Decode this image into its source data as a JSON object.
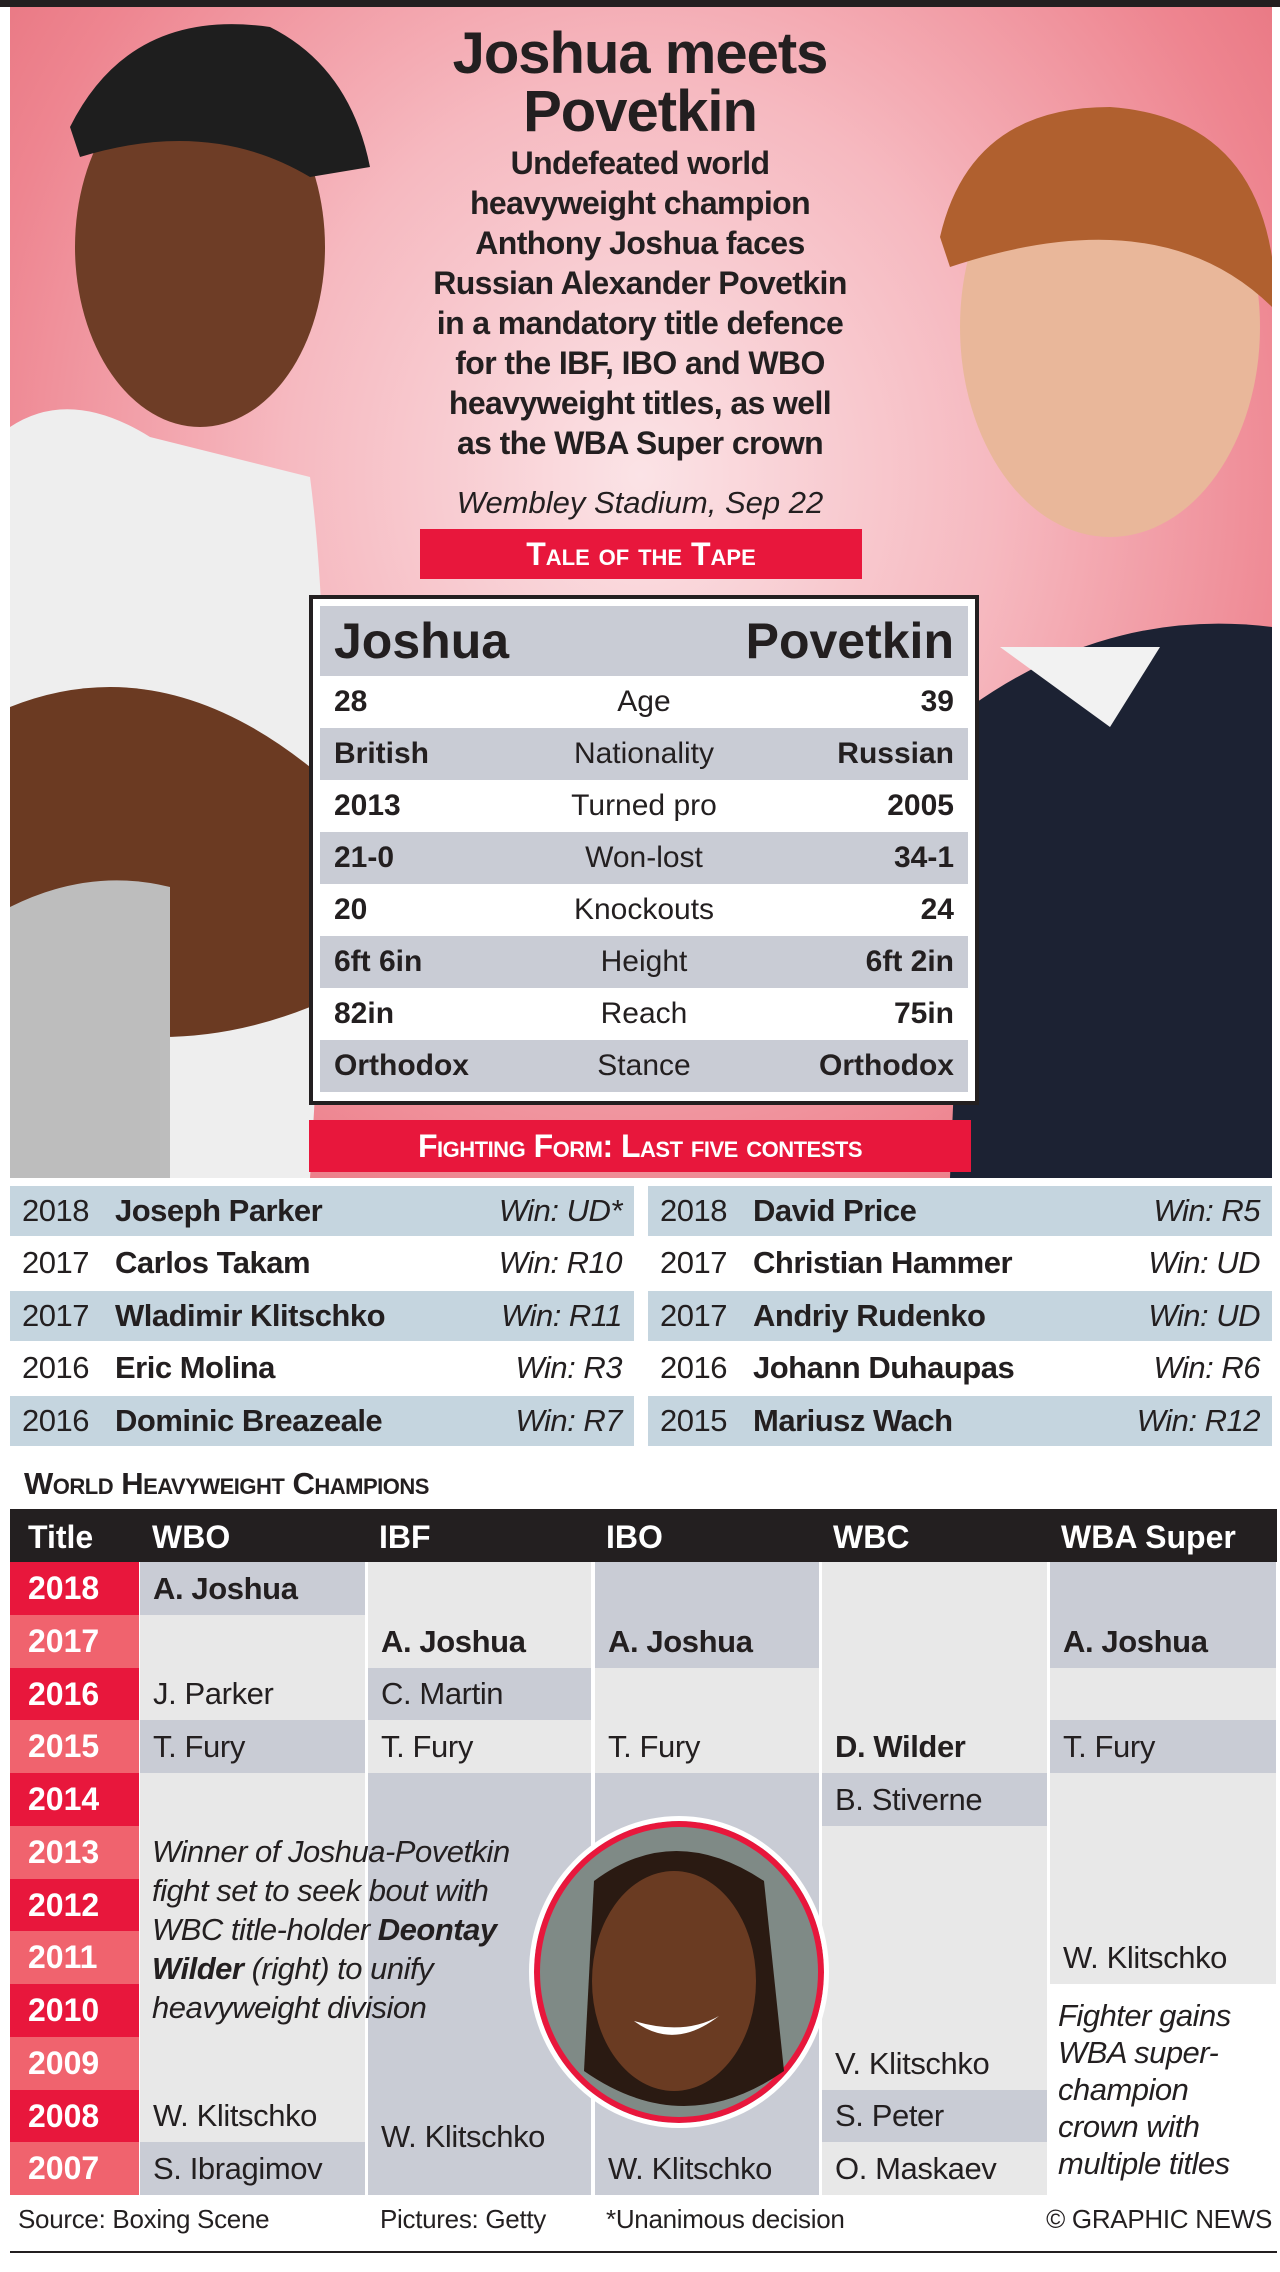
{
  "title": {
    "line1": "Joshua meets",
    "line2": "Povetkin"
  },
  "description": [
    "Undefeated world",
    "heavyweight champion",
    "Anthony Joshua faces",
    "Russian Alexander Povetkin",
    "in a mandatory title defence",
    "for the IBF, IBO and WBO",
    "heavyweight titles, as well",
    "as the WBA Super crown"
  ],
  "venue": "Wembley Stadium, Sep 22",
  "tape": {
    "heading": "Tale of the Tape",
    "left_name": "Joshua",
    "right_name": "Povetkin",
    "rows": [
      {
        "label": "Age",
        "left": "28",
        "right": "39"
      },
      {
        "label": "Nationality",
        "left": "British",
        "right": "Russian"
      },
      {
        "label": "Turned pro",
        "left": "2013",
        "right": "2005"
      },
      {
        "label": "Won-lost",
        "left": "21-0",
        "right": "34-1"
      },
      {
        "label": "Knockouts",
        "left": "20",
        "right": "24"
      },
      {
        "label": "Height",
        "left": "6ft 6in",
        "right": "6ft 2in"
      },
      {
        "label": "Reach",
        "left": "82in",
        "right": "75in"
      },
      {
        "label": "Stance",
        "left": "Orthodox",
        "right": "Orthodox"
      }
    ]
  },
  "form": {
    "heading": "Fighting Form: Last five contests",
    "joshua": [
      {
        "year": "2018",
        "opponent": "Joseph Parker",
        "result": "Win: UD*"
      },
      {
        "year": "2017",
        "opponent": "Carlos Takam",
        "result": "Win: R10"
      },
      {
        "year": "2017",
        "opponent": "Wladimir Klitschko",
        "result": "Win: R11"
      },
      {
        "year": "2016",
        "opponent": "Eric Molina",
        "result": "Win: R3"
      },
      {
        "year": "2016",
        "opponent": "Dominic Breazeale",
        "result": "Win: R7"
      }
    ],
    "povetkin": [
      {
        "year": "2018",
        "opponent": "David Price",
        "result": "Win: R5"
      },
      {
        "year": "2017",
        "opponent": "Christian Hammer",
        "result": "Win: UD"
      },
      {
        "year": "2017",
        "opponent": "Andriy Rudenko",
        "result": "Win: UD"
      },
      {
        "year": "2016",
        "opponent": "Johann Duhaupas",
        "result": "Win: R6"
      },
      {
        "year": "2015",
        "opponent": "Mariusz Wach",
        "result": "Win: R12"
      }
    ]
  },
  "champions": {
    "heading": "World Heavyweight Champions",
    "columns": [
      "Title",
      "WBO",
      "IBF",
      "IBO",
      "WBC",
      "WBA Super"
    ],
    "years": [
      "2018",
      "2017",
      "2016",
      "2015",
      "2014",
      "2013",
      "2012",
      "2011",
      "2010",
      "2009",
      "2008",
      "2007"
    ],
    "cells": [
      {
        "col": 1,
        "from": "2018",
        "to": "2018",
        "name": "A. Joshua",
        "bold": true,
        "shade": "dark"
      },
      {
        "col": 1,
        "from": "2017",
        "to": "2016",
        "name": "J. Parker",
        "shade": "light"
      },
      {
        "col": 1,
        "from": "2015",
        "to": "2015",
        "name": "T. Fury",
        "shade": "dark"
      },
      {
        "col": 1,
        "from": "2014",
        "to": "2009",
        "name": "",
        "shade": "light"
      },
      {
        "col": 1,
        "from": "2008",
        "to": "2008",
        "name": "W. Klitschko",
        "shade": "light"
      },
      {
        "col": 1,
        "from": "2007",
        "to": "2007",
        "name": "S. Ibragimov",
        "shade": "dark"
      },
      {
        "col": 2,
        "from": "2018",
        "to": "2017",
        "name": "A. Joshua",
        "bold": true,
        "shade": "light"
      },
      {
        "col": 2,
        "from": "2016",
        "to": "2016",
        "name": "C. Martin",
        "shade": "dark"
      },
      {
        "col": 2,
        "from": "2015",
        "to": "2015",
        "name": "T. Fury",
        "shade": "light"
      },
      {
        "col": 2,
        "from": "2014",
        "to": "2007",
        "name": "W. Klitschko",
        "shade": "dark"
      },
      {
        "col": 3,
        "from": "2018",
        "to": "2017",
        "name": "A. Joshua",
        "bold": true,
        "shade": "dark"
      },
      {
        "col": 3,
        "from": "2016",
        "to": "2015",
        "name": "T. Fury",
        "shade": "light"
      },
      {
        "col": 3,
        "from": "2014",
        "to": "2007",
        "name": "W. Klitschko",
        "shade": "dark"
      },
      {
        "col": 4,
        "from": "2018",
        "to": "2015",
        "name": "D. Wilder",
        "bold": true,
        "shade": "light"
      },
      {
        "col": 4,
        "from": "2014",
        "to": "2014",
        "name": "B. Stiverne",
        "shade": "dark"
      },
      {
        "col": 4,
        "from": "2013",
        "to": "2009",
        "name": "V. Klitschko",
        "shade": "light"
      },
      {
        "col": 4,
        "from": "2008",
        "to": "2008",
        "name": "S. Peter",
        "shade": "dark"
      },
      {
        "col": 4,
        "from": "2007",
        "to": "2007",
        "name": "O. Maskaev",
        "shade": "light"
      },
      {
        "col": 5,
        "from": "2018",
        "to": "2017",
        "name": "A. Joshua",
        "bold": true,
        "shade": "dark"
      },
      {
        "col": 5,
        "from": "2016",
        "to": "2016",
        "name": "",
        "shade": "light"
      },
      {
        "col": 5,
        "from": "2015",
        "to": "2015",
        "name": "T. Fury",
        "shade": "dark"
      },
      {
        "col": 5,
        "from": "2014",
        "to": "2011",
        "name": "W. Klitschko",
        "shade": "light"
      },
      {
        "col": 5,
        "from": "2010",
        "to": "2007",
        "name": "",
        "shade": "white"
      }
    ],
    "note_wilder": {
      "pre": "Winner of Joshua-Povetkin fight set to seek bout with WBC title-holder ",
      "bold": "Deontay Wilder",
      "post": " (right) to unify heavyweight division"
    },
    "note_wba": "Fighter gains WBA super-champion crown with multiple titles"
  },
  "footer": {
    "source": "Source: Boxing Scene",
    "pictures": "Pictures: Getty",
    "footnote": "*Unanimous decision",
    "credit": "© GRAPHIC NEWS"
  },
  "colors": {
    "accent_red": "#e8173c",
    "year_pink": "#f0636e",
    "cell_dark": "#c9ccd5",
    "cell_light": "#e8e8e8",
    "form_row": "#c5d5df",
    "ink": "#231f20"
  }
}
